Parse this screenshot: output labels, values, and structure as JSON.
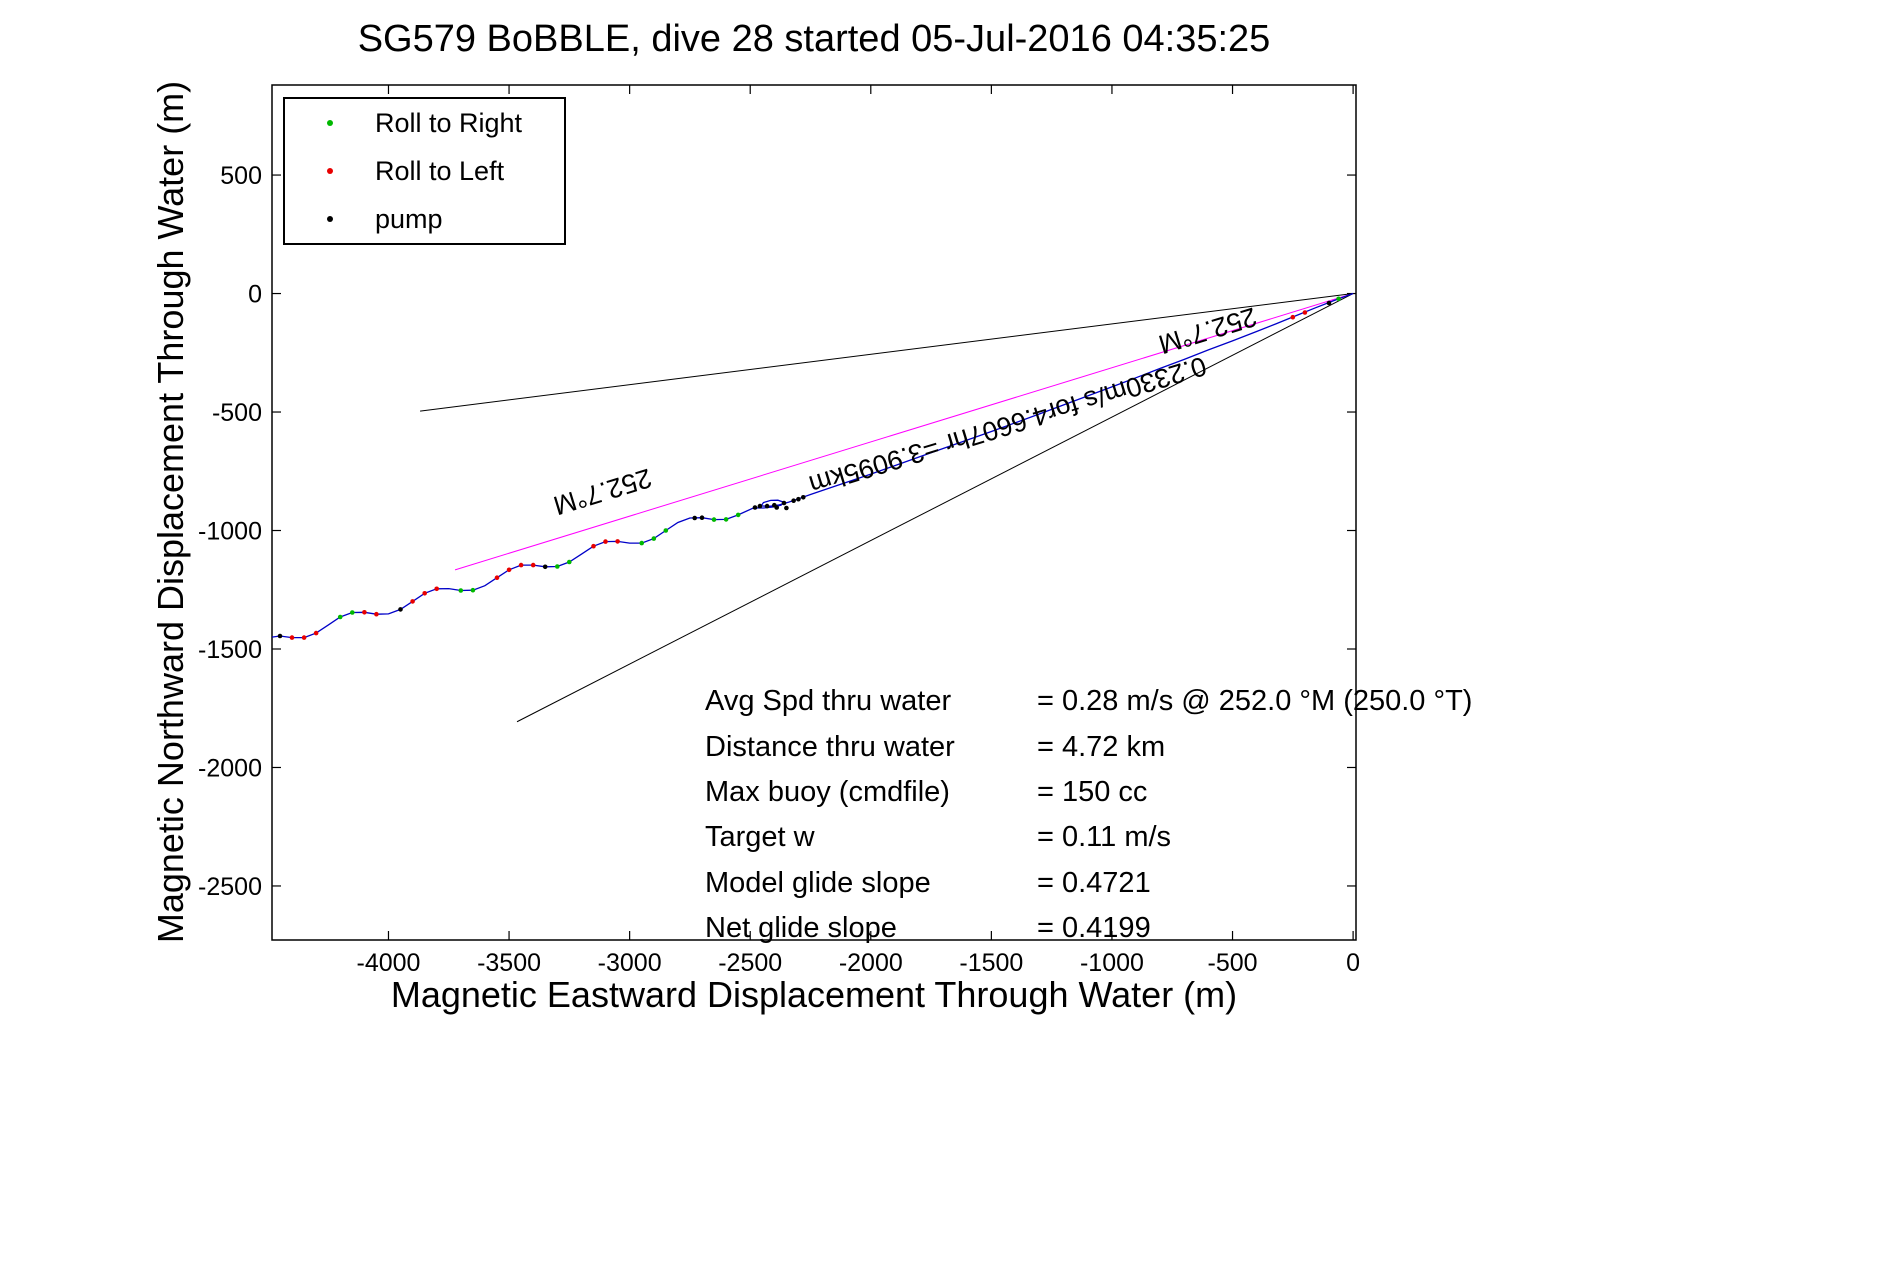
{
  "chart_data": {
    "type": "scatter",
    "title": "SG579 BoBBLE, dive 28 started 05-Jul-2016 04:35:25",
    "xlabel": "Magnetic Eastward Displacement Through Water (m)",
    "ylabel": "Magnetic Northward Displacement Through Water (m)",
    "xlim": [
      -4483,
      12
    ],
    "ylim": [
      -2728,
      880
    ],
    "xticks": [
      -4000,
      -3500,
      -3000,
      -2500,
      -2000,
      -1500,
      -1000,
      -500,
      0
    ],
    "yticks": [
      500,
      0,
      -500,
      -1000,
      -1500,
      -2000,
      -2500
    ],
    "grid": false,
    "legend": {
      "position": "top-left",
      "entries": [
        {
          "label": "Roll to Right",
          "color": "#00b800"
        },
        {
          "label": "Roll to Left",
          "color": "#e80000"
        },
        {
          "label": "pump",
          "color": "#000000"
        }
      ]
    },
    "track": {
      "color": "#0000c8",
      "points": [
        [
          0,
          0
        ],
        [
          -80,
          -30
        ],
        [
          -160,
          -62
        ],
        [
          -240,
          -95
        ],
        [
          -320,
          -128
        ],
        [
          -400,
          -160
        ],
        [
          -500,
          -200
        ],
        [
          -600,
          -238
        ],
        [
          -700,
          -278
        ],
        [
          -800,
          -316
        ],
        [
          -900,
          -355
        ],
        [
          -1000,
          -394
        ],
        [
          -1100,
          -432
        ],
        [
          -1200,
          -470
        ],
        [
          -1300,
          -508
        ],
        [
          -1400,
          -545
        ],
        [
          -1500,
          -582
        ],
        [
          -1600,
          -618
        ],
        [
          -1700,
          -654
        ],
        [
          -1800,
          -690
        ],
        [
          -1900,
          -726
        ],
        [
          -2000,
          -762
        ],
        [
          -2100,
          -796
        ],
        [
          -2180,
          -824
        ],
        [
          -2250,
          -848
        ],
        [
          -2300,
          -866
        ],
        [
          -2340,
          -880
        ],
        [
          -2380,
          -892
        ],
        [
          -2420,
          -898
        ],
        [
          -2455,
          -896
        ],
        [
          -2445,
          -882
        ],
        [
          -2415,
          -873
        ],
        [
          -2385,
          -872
        ],
        [
          -2362,
          -880
        ],
        [
          -2372,
          -893
        ],
        [
          -2405,
          -901
        ],
        [
          -2445,
          -905
        ],
        [
          -2485,
          -904
        ],
        [
          -2550,
          -934
        ],
        [
          -2600,
          -953
        ],
        [
          -2650,
          -954
        ],
        [
          -2700,
          -946
        ],
        [
          -2750,
          -947
        ],
        [
          -2800,
          -966
        ],
        [
          -2850,
          -1000
        ],
        [
          -2900,
          -1034
        ],
        [
          -2950,
          -1053
        ],
        [
          -3000,
          -1053
        ],
        [
          -3050,
          -1046
        ],
        [
          -3100,
          -1047
        ],
        [
          -3150,
          -1066
        ],
        [
          -3200,
          -1100
        ],
        [
          -3250,
          -1133
        ],
        [
          -3300,
          -1152
        ],
        [
          -3350,
          -1153
        ],
        [
          -3400,
          -1146
        ],
        [
          -3450,
          -1146
        ],
        [
          -3500,
          -1166
        ],
        [
          -3550,
          -1199
        ],
        [
          -3600,
          -1233
        ],
        [
          -3650,
          -1252
        ],
        [
          -3700,
          -1253
        ],
        [
          -3750,
          -1245
        ],
        [
          -3800,
          -1246
        ],
        [
          -3850,
          -1265
        ],
        [
          -3900,
          -1299
        ],
        [
          -3950,
          -1333
        ],
        [
          -4000,
          -1352
        ],
        [
          -4050,
          -1353
        ],
        [
          -4100,
          -1345
        ],
        [
          -4150,
          -1346
        ],
        [
          -4200,
          -1365
        ],
        [
          -4250,
          -1399
        ],
        [
          -4300,
          -1433
        ],
        [
          -4350,
          -1452
        ],
        [
          -4400,
          -1452
        ],
        [
          -4450,
          -1445
        ],
        [
          -4483,
          -1450
        ]
      ]
    },
    "lines": [
      {
        "name": "heading-line",
        "color": "#ff00ff",
        "from": [
          0,
          0
        ],
        "to": [
          -3724,
          -1166
        ]
      },
      {
        "name": "cone-upper-line",
        "color": "#000000",
        "from": [
          0,
          0
        ],
        "to": [
          -3869,
          -496
        ]
      },
      {
        "name": "cone-lower-line",
        "color": "#000000",
        "from": [
          0,
          0
        ],
        "to": [
          -3467,
          -1807
        ]
      }
    ],
    "marker_colors": {
      "g": "#00b800",
      "r": "#e80000",
      "k": "#000000"
    },
    "markers": [
      {
        "x": -60,
        "y": -22,
        "c": "g"
      },
      {
        "x": -100,
        "y": -40,
        "c": "k"
      },
      {
        "x": -200,
        "y": -80,
        "c": "r"
      },
      {
        "x": -250,
        "y": -100,
        "c": "r"
      },
      {
        "x": -2280,
        "y": -860,
        "c": "k"
      },
      {
        "x": -2320,
        "y": -874,
        "c": "k"
      },
      {
        "x": -2360,
        "y": -884,
        "c": "k"
      },
      {
        "x": -2400,
        "y": -893,
        "c": "k"
      },
      {
        "x": -2430,
        "y": -897,
        "c": "k"
      },
      {
        "x": -2460,
        "y": -897,
        "c": "k"
      },
      {
        "x": -2350,
        "y": -905,
        "c": "k"
      },
      {
        "x": -2390,
        "y": -903,
        "c": "k"
      },
      {
        "x": -2300,
        "y": -868,
        "c": "k"
      },
      {
        "x": -2480,
        "y": -903,
        "c": "k"
      },
      {
        "x": -2550,
        "y": -934,
        "c": "g"
      },
      {
        "x": -2600,
        "y": -953,
        "c": "g"
      },
      {
        "x": -2650,
        "y": -954,
        "c": "g"
      },
      {
        "x": -2700,
        "y": -946,
        "c": "k"
      },
      {
        "x": -2730,
        "y": -947,
        "c": "k"
      },
      {
        "x": -2850,
        "y": -1000,
        "c": "g"
      },
      {
        "x": -2900,
        "y": -1034,
        "c": "g"
      },
      {
        "x": -2950,
        "y": -1053,
        "c": "g"
      },
      {
        "x": -3050,
        "y": -1046,
        "c": "r"
      },
      {
        "x": -3100,
        "y": -1047,
        "c": "r"
      },
      {
        "x": -3150,
        "y": -1066,
        "c": "r"
      },
      {
        "x": -3250,
        "y": -1133,
        "c": "g"
      },
      {
        "x": -3300,
        "y": -1152,
        "c": "g"
      },
      {
        "x": -3350,
        "y": -1153,
        "c": "k"
      },
      {
        "x": -3400,
        "y": -1146,
        "c": "r"
      },
      {
        "x": -3450,
        "y": -1146,
        "c": "r"
      },
      {
        "x": -3500,
        "y": -1166,
        "c": "r"
      },
      {
        "x": -3550,
        "y": -1199,
        "c": "r"
      },
      {
        "x": -3650,
        "y": -1252,
        "c": "g"
      },
      {
        "x": -3700,
        "y": -1253,
        "c": "g"
      },
      {
        "x": -3800,
        "y": -1246,
        "c": "r"
      },
      {
        "x": -3850,
        "y": -1265,
        "c": "r"
      },
      {
        "x": -3900,
        "y": -1299,
        "c": "r"
      },
      {
        "x": -3950,
        "y": -1333,
        "c": "k"
      },
      {
        "x": -4050,
        "y": -1353,
        "c": "r"
      },
      {
        "x": -4100,
        "y": -1345,
        "c": "r"
      },
      {
        "x": -4150,
        "y": -1346,
        "c": "g"
      },
      {
        "x": -4200,
        "y": -1365,
        "c": "g"
      },
      {
        "x": -4300,
        "y": -1433,
        "c": "r"
      },
      {
        "x": -4350,
        "y": -1452,
        "c": "r"
      },
      {
        "x": -4400,
        "y": -1452,
        "c": "r"
      },
      {
        "x": -4450,
        "y": -1445,
        "c": "k"
      }
    ],
    "annotations": [
      {
        "text": "252.7°M",
        "x": -614,
        "y": -120,
        "rotation": 163
      },
      {
        "text": "0.2330m/s for4.6607hr =3.9095km",
        "x": -1443,
        "y": -520,
        "rotation": 163
      },
      {
        "text": "252.7°M",
        "x": -3123,
        "y": -800,
        "rotation": 163
      }
    ],
    "stats": [
      {
        "label": "Avg Spd thru water",
        "value": "=  0.28 m/s @ 252.0 °M (250.0 °T)"
      },
      {
        "label": "Distance thru water",
        "value": "=  4.72 km"
      },
      {
        "label": "Max buoy (cmdfile)",
        "value": "= 150 cc"
      },
      {
        "label": "Target w",
        "value": "= 0.11 m/s"
      },
      {
        "label": "Model glide slope",
        "value": "= 0.4721"
      },
      {
        "label": "Net glide slope",
        "value": "= 0.4199"
      }
    ]
  }
}
